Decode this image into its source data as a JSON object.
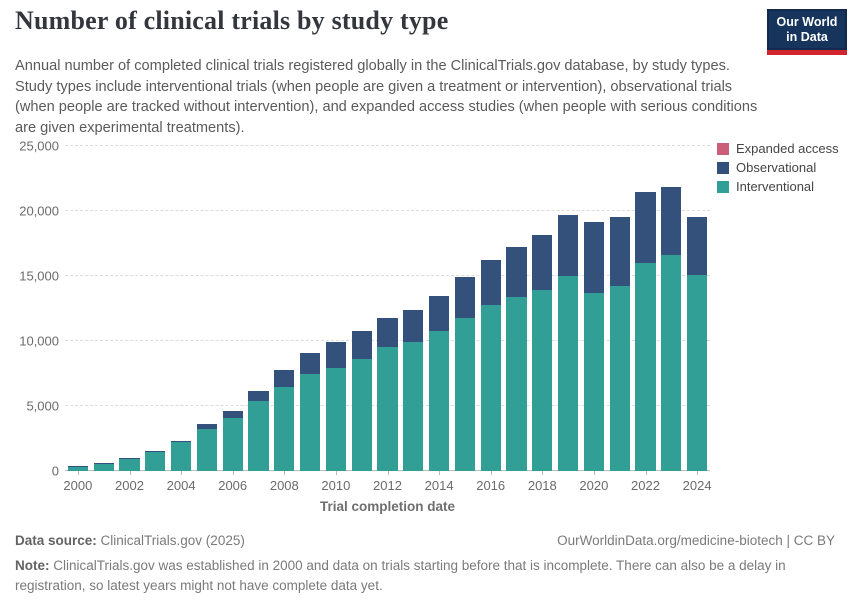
{
  "header": {
    "title": "Number of clinical trials by study type",
    "subtitle": "Annual number of completed clinical trials registered globally in the ClinicalTrials.gov database, by study types. Study types include interventional trials (when people are given a treatment or intervention), observational trials (when people are tracked without intervention), and expanded access studies (when people with serious conditions are given experimental treatments).",
    "logo": {
      "line1": "Our World",
      "line2": "in Data"
    }
  },
  "legend": {
    "items": [
      {
        "label": "Expanded access",
        "color": "#cb5f79"
      },
      {
        "label": "Observational",
        "color": "#33517a"
      },
      {
        "label": "Interventional",
        "color": "#319f95"
      }
    ]
  },
  "chart_data": {
    "type": "bar",
    "stacked": true,
    "title": "Number of clinical trials by study type",
    "xlabel": "Trial completion date",
    "ylabel": "",
    "ylim": [
      0,
      25000
    ],
    "grid": true,
    "legend_position": "right-top",
    "y_ticks": [
      {
        "value": 0,
        "label": "0"
      },
      {
        "value": 5000,
        "label": "5,000"
      },
      {
        "value": 10000,
        "label": "10,000"
      },
      {
        "value": 15000,
        "label": "15,000"
      },
      {
        "value": 20000,
        "label": "20,000"
      },
      {
        "value": 25000,
        "label": "25,000"
      }
    ],
    "categories": [
      "2000",
      "2001",
      "2002",
      "2003",
      "2004",
      "2005",
      "2006",
      "2007",
      "2008",
      "2009",
      "2010",
      "2011",
      "2012",
      "2013",
      "2014",
      "2015",
      "2016",
      "2017",
      "2018",
      "2019",
      "2020",
      "2021",
      "2022",
      "2023",
      "2024"
    ],
    "x_tick_labels": [
      "2000",
      "2002",
      "2004",
      "2006",
      "2008",
      "2010",
      "2012",
      "2014",
      "2016",
      "2018",
      "2020",
      "2022",
      "2024"
    ],
    "series": [
      {
        "name": "Interventional",
        "color": "#319f95",
        "values": [
          380,
          600,
          950,
          1450,
          2200,
          3250,
          4100,
          5350,
          6450,
          7500,
          7950,
          8650,
          9550,
          9950,
          10750,
          11750,
          12750,
          13350,
          13950,
          15000,
          13700,
          14250,
          16000,
          16600,
          15050
        ]
      },
      {
        "name": "Observational",
        "color": "#33517a",
        "values": [
          20,
          50,
          70,
          100,
          100,
          400,
          550,
          800,
          1350,
          1550,
          1950,
          2150,
          2250,
          2450,
          2750,
          3200,
          3500,
          3850,
          4200,
          4700,
          5450,
          5300,
          5450,
          5250,
          4500
        ]
      },
      {
        "name": "Expanded access",
        "color": "#cb5f79",
        "values": [
          0,
          0,
          0,
          0,
          0,
          0,
          0,
          0,
          0,
          0,
          0,
          0,
          0,
          0,
          0,
          0,
          0,
          0,
          0,
          0,
          0,
          0,
          0,
          0,
          0
        ]
      }
    ]
  },
  "footer": {
    "data_source_label": "Data source:",
    "data_source_value": " ClinicalTrials.gov (2025)",
    "link": "OurWorldinData.org/medicine-biotech | CC BY",
    "note_label": "Note:",
    "note_value": " ClinicalTrials.gov was established in 2000 and data on trials starting before that is incomplete. There can also be a delay in registration, so latest years might not have complete data yet."
  }
}
